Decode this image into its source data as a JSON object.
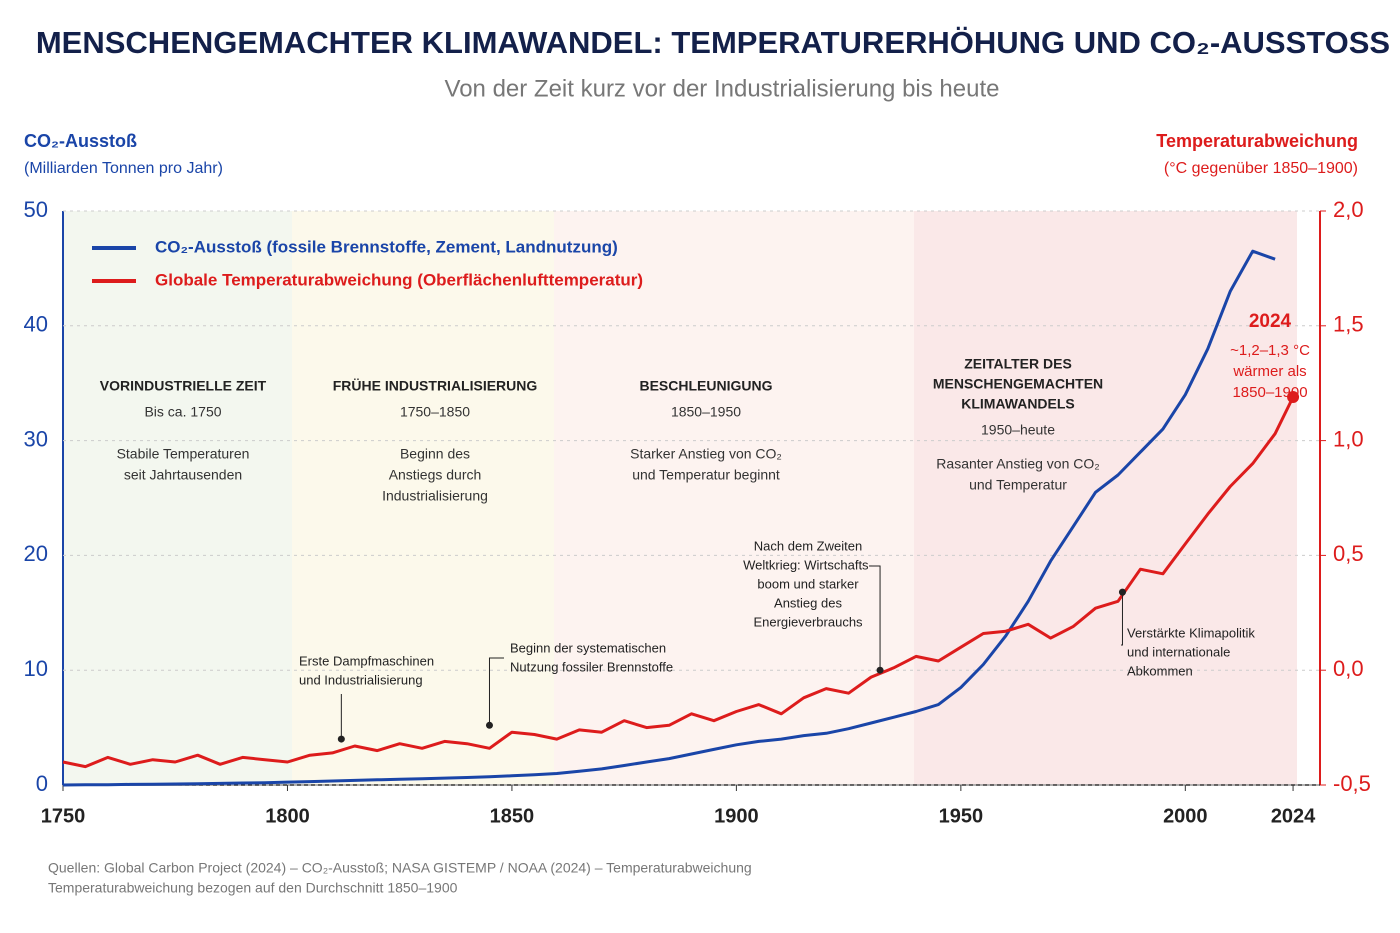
{
  "chart_data": {
    "type": "line",
    "title": "MENSCHENGEMACHTER KLIMAWANDEL: TEMPERATURERHÖHUNG UND CO₂-AUSSTOSS",
    "subtitle": "Von der Zeit kurz vor der Industrialisierung bis heute",
    "y_label": "CO₂-Ausstoß",
    "y_sublabel": "(Milliarden Tonnen pro Jahr)",
    "y2_label": "Temperaturabweichung",
    "y2_sublabel": "(°C gegenüber 1850–1900)",
    "x": [
      1750,
      1755,
      1760,
      1765,
      1770,
      1775,
      1780,
      1785,
      1790,
      1795,
      1800,
      1805,
      1810,
      1815,
      1820,
      1825,
      1830,
      1835,
      1840,
      1845,
      1850,
      1855,
      1860,
      1865,
      1870,
      1875,
      1880,
      1885,
      1890,
      1895,
      1900,
      1905,
      1910,
      1915,
      1920,
      1925,
      1930,
      1935,
      1940,
      1945,
      1950,
      1955,
      1960,
      1965,
      1970,
      1975,
      1980,
      1985,
      1990,
      1995,
      2000,
      2005,
      2010,
      2015,
      2020,
      2024
    ],
    "series": [
      {
        "name": "CO₂-Ausstoß (fossile Brennstoffe, Zement, Landnutzung)",
        "color": "#1a45a8",
        "values": [
          0,
          0.02,
          0.03,
          0.05,
          0.07,
          0.09,
          0.11,
          0.14,
          0.17,
          0.2,
          0.25,
          0.3,
          0.35,
          0.4,
          0.45,
          0.5,
          0.55,
          0.6,
          0.65,
          0.72,
          0.8,
          0.9,
          1.0,
          1.2,
          1.4,
          1.7,
          2.0,
          2.3,
          2.7,
          3.1,
          3.5,
          3.8,
          4.0,
          4.3,
          4.5,
          4.9,
          5.4,
          5.9,
          6.4,
          7.0,
          8.5,
          10.5,
          13.0,
          16.0,
          19.5,
          22.5,
          25.5,
          27.0,
          29.0,
          31.0,
          34.0,
          38.0,
          43.0,
          46.5,
          45.8,
          null
        ]
      },
      {
        "name": "Globale Temperaturabweichung (Oberflächenlufttemperatur)",
        "color": "#dd1c1c",
        "axis": "y2",
        "values": [
          -0.4,
          -0.42,
          -0.38,
          -0.41,
          -0.39,
          -0.4,
          -0.37,
          -0.41,
          -0.38,
          -0.39,
          -0.4,
          -0.37,
          -0.36,
          -0.33,
          -0.35,
          -0.32,
          -0.34,
          -0.31,
          -0.32,
          -0.34,
          -0.27,
          -0.28,
          -0.3,
          -0.26,
          -0.27,
          -0.22,
          -0.25,
          -0.24,
          -0.19,
          -0.22,
          -0.18,
          -0.15,
          -0.19,
          -0.12,
          -0.08,
          -0.1,
          -0.03,
          0.01,
          0.06,
          0.04,
          0.1,
          0.16,
          0.17,
          0.2,
          0.14,
          0.19,
          0.27,
          0.3,
          0.44,
          0.42,
          0.55,
          0.68,
          0.8,
          0.9,
          1.03,
          1.19
        ]
      }
    ],
    "xlim": [
      1750,
      2030
    ],
    "xticks": [
      1750,
      1800,
      1850,
      1900,
      1950,
      2000,
      2024
    ],
    "ylim": [
      0,
      50
    ],
    "yticks": [
      0,
      10,
      20,
      30,
      40,
      50
    ],
    "y2lim": [
      -0.5,
      2.0
    ],
    "y2ticks": [
      {
        "value": -0.5,
        "label": "-0,5"
      },
      {
        "value": 0.0,
        "label": "0,0"
      },
      {
        "value": 0.5,
        "label": "0,5"
      },
      {
        "value": 1.0,
        "label": "1,0"
      },
      {
        "value": 1.5,
        "label": "1,5"
      },
      {
        "value": 2.0,
        "label": "2,0"
      }
    ],
    "grid": true,
    "legend": "top-left",
    "eras": [
      {
        "title": [
          "VORINDUSTRIELLE ZEIT"
        ],
        "period": "Bis ca. 1750",
        "description": [
          "Stabile Temperaturen",
          "seit Jahrtausenden"
        ]
      },
      {
        "title": [
          "FRÜHE INDUSTRIALISIERUNG"
        ],
        "period": "1750–1850",
        "description": [
          "Beginn des",
          "Anstiegs durch",
          "Industrialisierung"
        ]
      },
      {
        "title": [
          "BESCHLEUNIGUNG"
        ],
        "period": "1850–1950",
        "description": [
          "Starker Anstieg von CO₂",
          "und Temperatur beginnt"
        ]
      },
      {
        "title": [
          "ZEITALTER DES",
          "MENSCHENGEMACHTEN",
          "KLIMAWANDELS"
        ],
        "period": "1950–heute",
        "description": [
          "Rasanter Anstieg von CO₂",
          "und Temperatur"
        ]
      }
    ],
    "annotations": [
      {
        "x": 1812,
        "y": -0.3,
        "lines": [
          "Erste Dampfmaschinen",
          "und Industrialisierung"
        ]
      },
      {
        "x": 1845,
        "y": -0.24,
        "lines": [
          "Beginn der systematischen",
          "Nutzung fossiler Brennstoffe"
        ]
      },
      {
        "x": 1932,
        "y": 0.0,
        "lines": [
          "Nach dem Zweiten",
          "Weltkrieg: Wirtschafts-",
          "boom und starker",
          "Anstieg des",
          "Energieverbrauchs"
        ]
      },
      {
        "x": 1986,
        "y": 0.34,
        "lines": [
          "Verstärkte Klimapolitik",
          "und internationale",
          "Abkommen"
        ]
      }
    ],
    "highlight": {
      "title": "2024",
      "lines": [
        "~1,2–1,3 °C",
        "wärmer als",
        "1850–1900"
      ]
    },
    "sources": [
      "Quellen: Global Carbon Project (2024) – CO₂-Ausstoß;  NASA GISTEMP / NOAA (2024) – Temperaturabweichung",
      "Temperaturabweichung bezogen auf den Durchschnitt 1850–1900"
    ]
  }
}
